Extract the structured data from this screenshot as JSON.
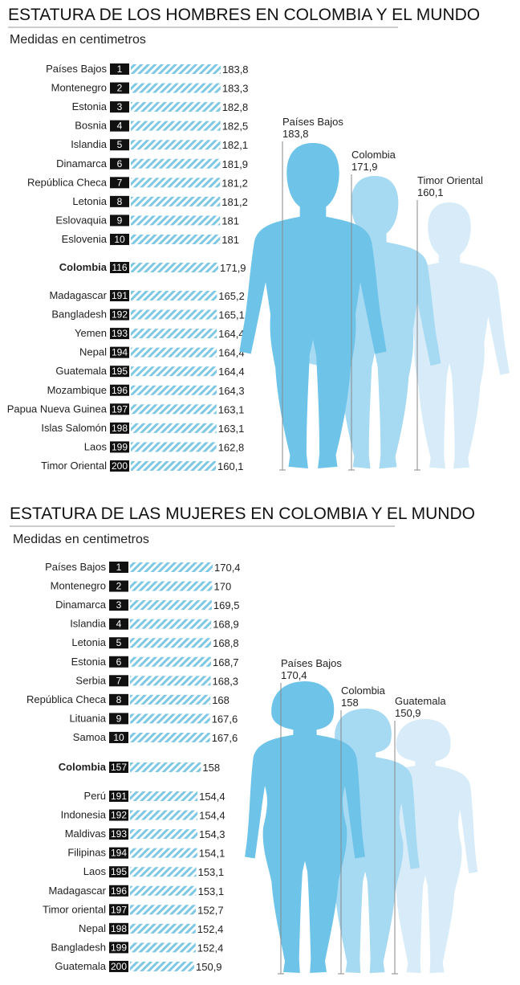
{
  "colors": {
    "bar_stripe": "#7fc8e4",
    "rank_box": "#111111",
    "figure_dark": "#6ec3e8",
    "figure_mid": "#a6d9f2",
    "figure_light": "#d7ecf8",
    "line": "#888888"
  },
  "chart_data": [
    {
      "type": "bar",
      "title": "ESTATURA DE LOS HOMBRES EN COLOMBIA Y EL MUNDO",
      "subtitle": "Medidas en centimetros",
      "unit": "cm",
      "rows": [
        {
          "country": "Países Bajos",
          "rank": "1",
          "value": 183.8,
          "label": "183,8"
        },
        {
          "country": "Montenegro",
          "rank": "2",
          "value": 183.3,
          "label": "183,3"
        },
        {
          "country": "Estonia",
          "rank": "3",
          "value": 182.8,
          "label": "182,8"
        },
        {
          "country": "Bosnia",
          "rank": "4",
          "value": 182.5,
          "label": "182,5"
        },
        {
          "country": "Islandia",
          "rank": "5",
          "value": 182.1,
          "label": "182,1"
        },
        {
          "country": "Dinamarca",
          "rank": "6",
          "value": 181.9,
          "label": "181,9"
        },
        {
          "country": "República Checa",
          "rank": "7",
          "value": 181.2,
          "label": "181,2"
        },
        {
          "country": "Letonia",
          "rank": "8",
          "value": 181.2,
          "label": "181,2"
        },
        {
          "country": "Eslovaquia",
          "rank": "9",
          "value": 181,
          "label": "181"
        },
        {
          "country": "Eslovenia",
          "rank": "10",
          "value": 181,
          "label": "181"
        },
        {
          "country": "Colombia",
          "rank": "116",
          "value": 171.9,
          "label": "171,9",
          "highlight": true
        },
        {
          "country": "Madagascar",
          "rank": "191",
          "value": 165.2,
          "label": "165,2"
        },
        {
          "country": "Bangladesh",
          "rank": "192",
          "value": 165.1,
          "label": "165,1"
        },
        {
          "country": "Yemen",
          "rank": "193",
          "value": 164.4,
          "label": "164,4"
        },
        {
          "country": "Nepal",
          "rank": "194",
          "value": 164.4,
          "label": "164,4"
        },
        {
          "country": "Guatemala",
          "rank": "195",
          "value": 164.4,
          "label": "164,4"
        },
        {
          "country": "Mozambique",
          "rank": "196",
          "value": 164.3,
          "label": "164,3"
        },
        {
          "country": "Papua Nueva Guinea",
          "rank": "197",
          "value": 163.1,
          "label": "163,1"
        },
        {
          "country": "Islas Salomón",
          "rank": "198",
          "value": 163.1,
          "label": "163,1"
        },
        {
          "country": "Laos",
          "rank": "199",
          "value": 162.8,
          "label": "162,8"
        },
        {
          "country": "Timor Oriental",
          "rank": "200",
          "value": 160.1,
          "label": "160,1"
        }
      ],
      "figures": [
        {
          "name": "Países Bajos",
          "label": "183,8",
          "value": 183.8
        },
        {
          "name": "Colombia",
          "label": "171,9",
          "value": 171.9
        },
        {
          "name": "Timor Oriental",
          "label": "160,1",
          "value": 160.1
        }
      ]
    },
    {
      "type": "bar",
      "title": "ESTATURA DE LAS MUJERES EN COLOMBIA Y EL MUNDO",
      "subtitle": "Medidas en centimetros",
      "unit": "cm",
      "rows": [
        {
          "country": "Países Bajos",
          "rank": "1",
          "value": 170.4,
          "label": "170,4"
        },
        {
          "country": "Montenegro",
          "rank": "2",
          "value": 170,
          "label": "170"
        },
        {
          "country": "Dinamarca",
          "rank": "3",
          "value": 169.5,
          "label": "169,5"
        },
        {
          "country": "Islandia",
          "rank": "4",
          "value": 168.9,
          "label": "168,9"
        },
        {
          "country": "Letonia",
          "rank": "5",
          "value": 168.8,
          "label": "168,8"
        },
        {
          "country": "Estonia",
          "rank": "6",
          "value": 168.7,
          "label": "168,7"
        },
        {
          "country": "Serbia",
          "rank": "7",
          "value": 168.3,
          "label": "168,3"
        },
        {
          "country": "República Checa",
          "rank": "8",
          "value": 168,
          "label": "168"
        },
        {
          "country": "Lituania",
          "rank": "9",
          "value": 167.6,
          "label": "167,6"
        },
        {
          "country": "Samoa",
          "rank": "10",
          "value": 167.6,
          "label": "167,6"
        },
        {
          "country": "Colombia",
          "rank": "157",
          "value": 158,
          "label": "158",
          "highlight": true
        },
        {
          "country": "Perú",
          "rank": "191",
          "value": 154.4,
          "label": "154,4"
        },
        {
          "country": "Indonesia",
          "rank": "192",
          "value": 154.4,
          "label": "154,4"
        },
        {
          "country": "Maldivas",
          "rank": "193",
          "value": 154.3,
          "label": "154,3"
        },
        {
          "country": "Filipinas",
          "rank": "194",
          "value": 154.1,
          "label": "154,1"
        },
        {
          "country": "Laos",
          "rank": "195",
          "value": 153.1,
          "label": "153,1"
        },
        {
          "country": "Madagascar",
          "rank": "196",
          "value": 153.1,
          "label": "153,1"
        },
        {
          "country": "Timor oriental",
          "rank": "197",
          "value": 152.7,
          "label": "152,7"
        },
        {
          "country": "Nepal",
          "rank": "198",
          "value": 152.4,
          "label": "152,4"
        },
        {
          "country": "Bangladesh",
          "rank": "199",
          "value": 152.4,
          "label": "152,4"
        },
        {
          "country": "Guatemala",
          "rank": "200",
          "value": 150.9,
          "label": "150,9"
        }
      ],
      "figures": [
        {
          "name": "Países Bajos",
          "label": "170,4",
          "value": 170.4
        },
        {
          "name": "Colombia",
          "label": "158",
          "value": 158
        },
        {
          "name": "Guatemala",
          "label": "150,9",
          "value": 150.9
        }
      ]
    }
  ]
}
